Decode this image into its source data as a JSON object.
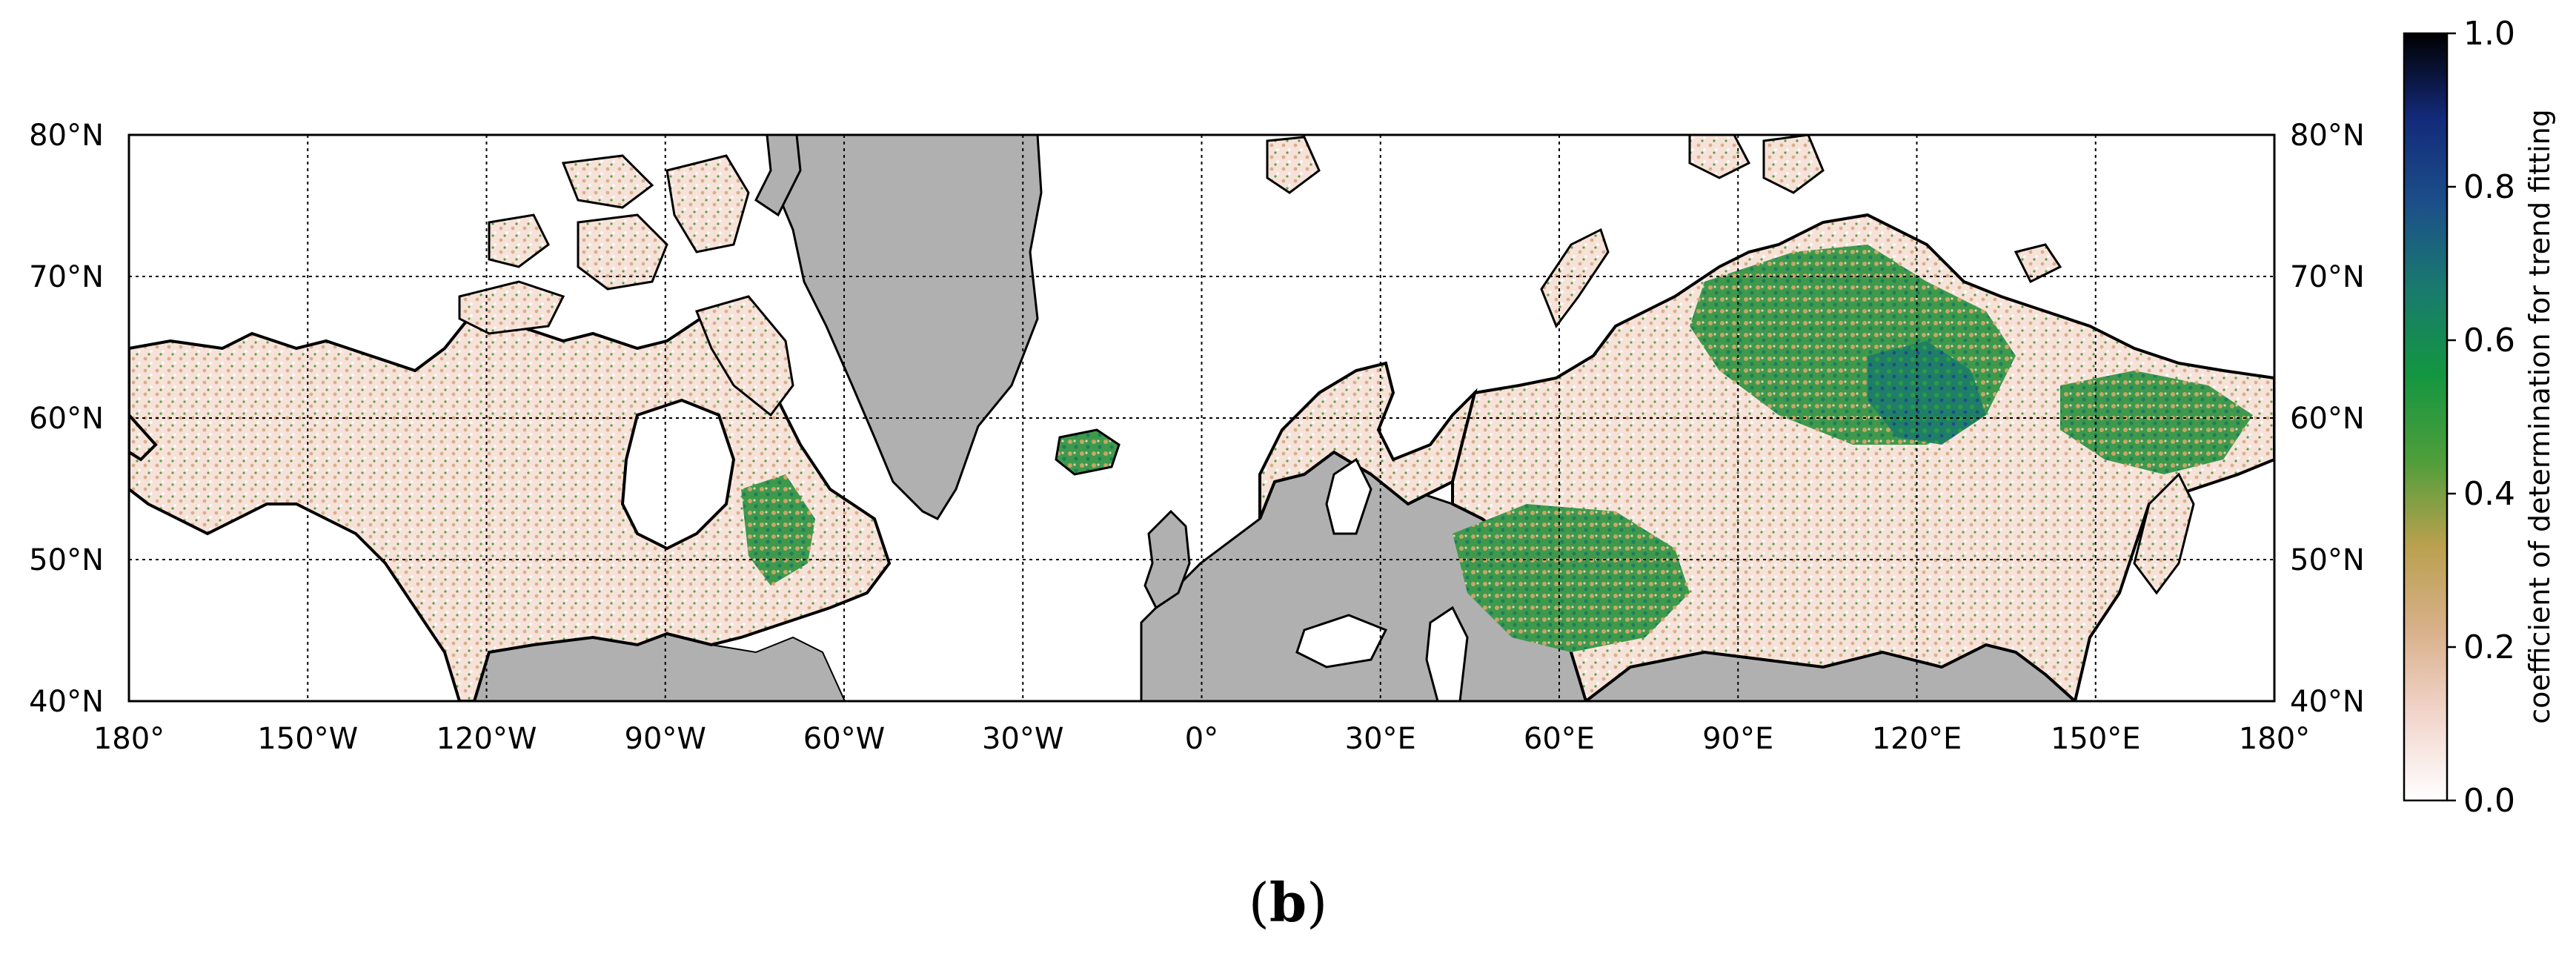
{
  "map": {
    "lat_ticks": [
      "40°N",
      "50°N",
      "60°N",
      "70°N",
      "80°N"
    ],
    "lon_ticks": [
      "180°",
      "150°W",
      "120°W",
      "90°W",
      "60°W",
      "30°W",
      "0°",
      "30°E",
      "60°E",
      "90°E",
      "120°E",
      "150°E",
      "180°"
    ],
    "lat_range": [
      40,
      80
    ],
    "lon_range": [
      -180,
      180
    ],
    "grid": true,
    "ice_color": "#b0b0b0",
    "ocean_color": "#ffffff"
  },
  "colorbar": {
    "label": "coefficient of determination for trend fitting",
    "ticks": [
      "0.0",
      "0.2",
      "0.4",
      "0.6",
      "0.8",
      "1.0"
    ],
    "range": [
      0.0,
      1.0
    ],
    "colormap": "gist_earth_r",
    "stops": [
      "#ffffff",
      "#f2d5cc",
      "#d9b08a",
      "#b9a04e",
      "#4e9e3a",
      "#139641",
      "#197a6e",
      "#1c4f8a",
      "#132a7a",
      "#000000"
    ]
  },
  "panel": {
    "label_open": "(",
    "label_letter": "b",
    "label_close": ")"
  }
}
